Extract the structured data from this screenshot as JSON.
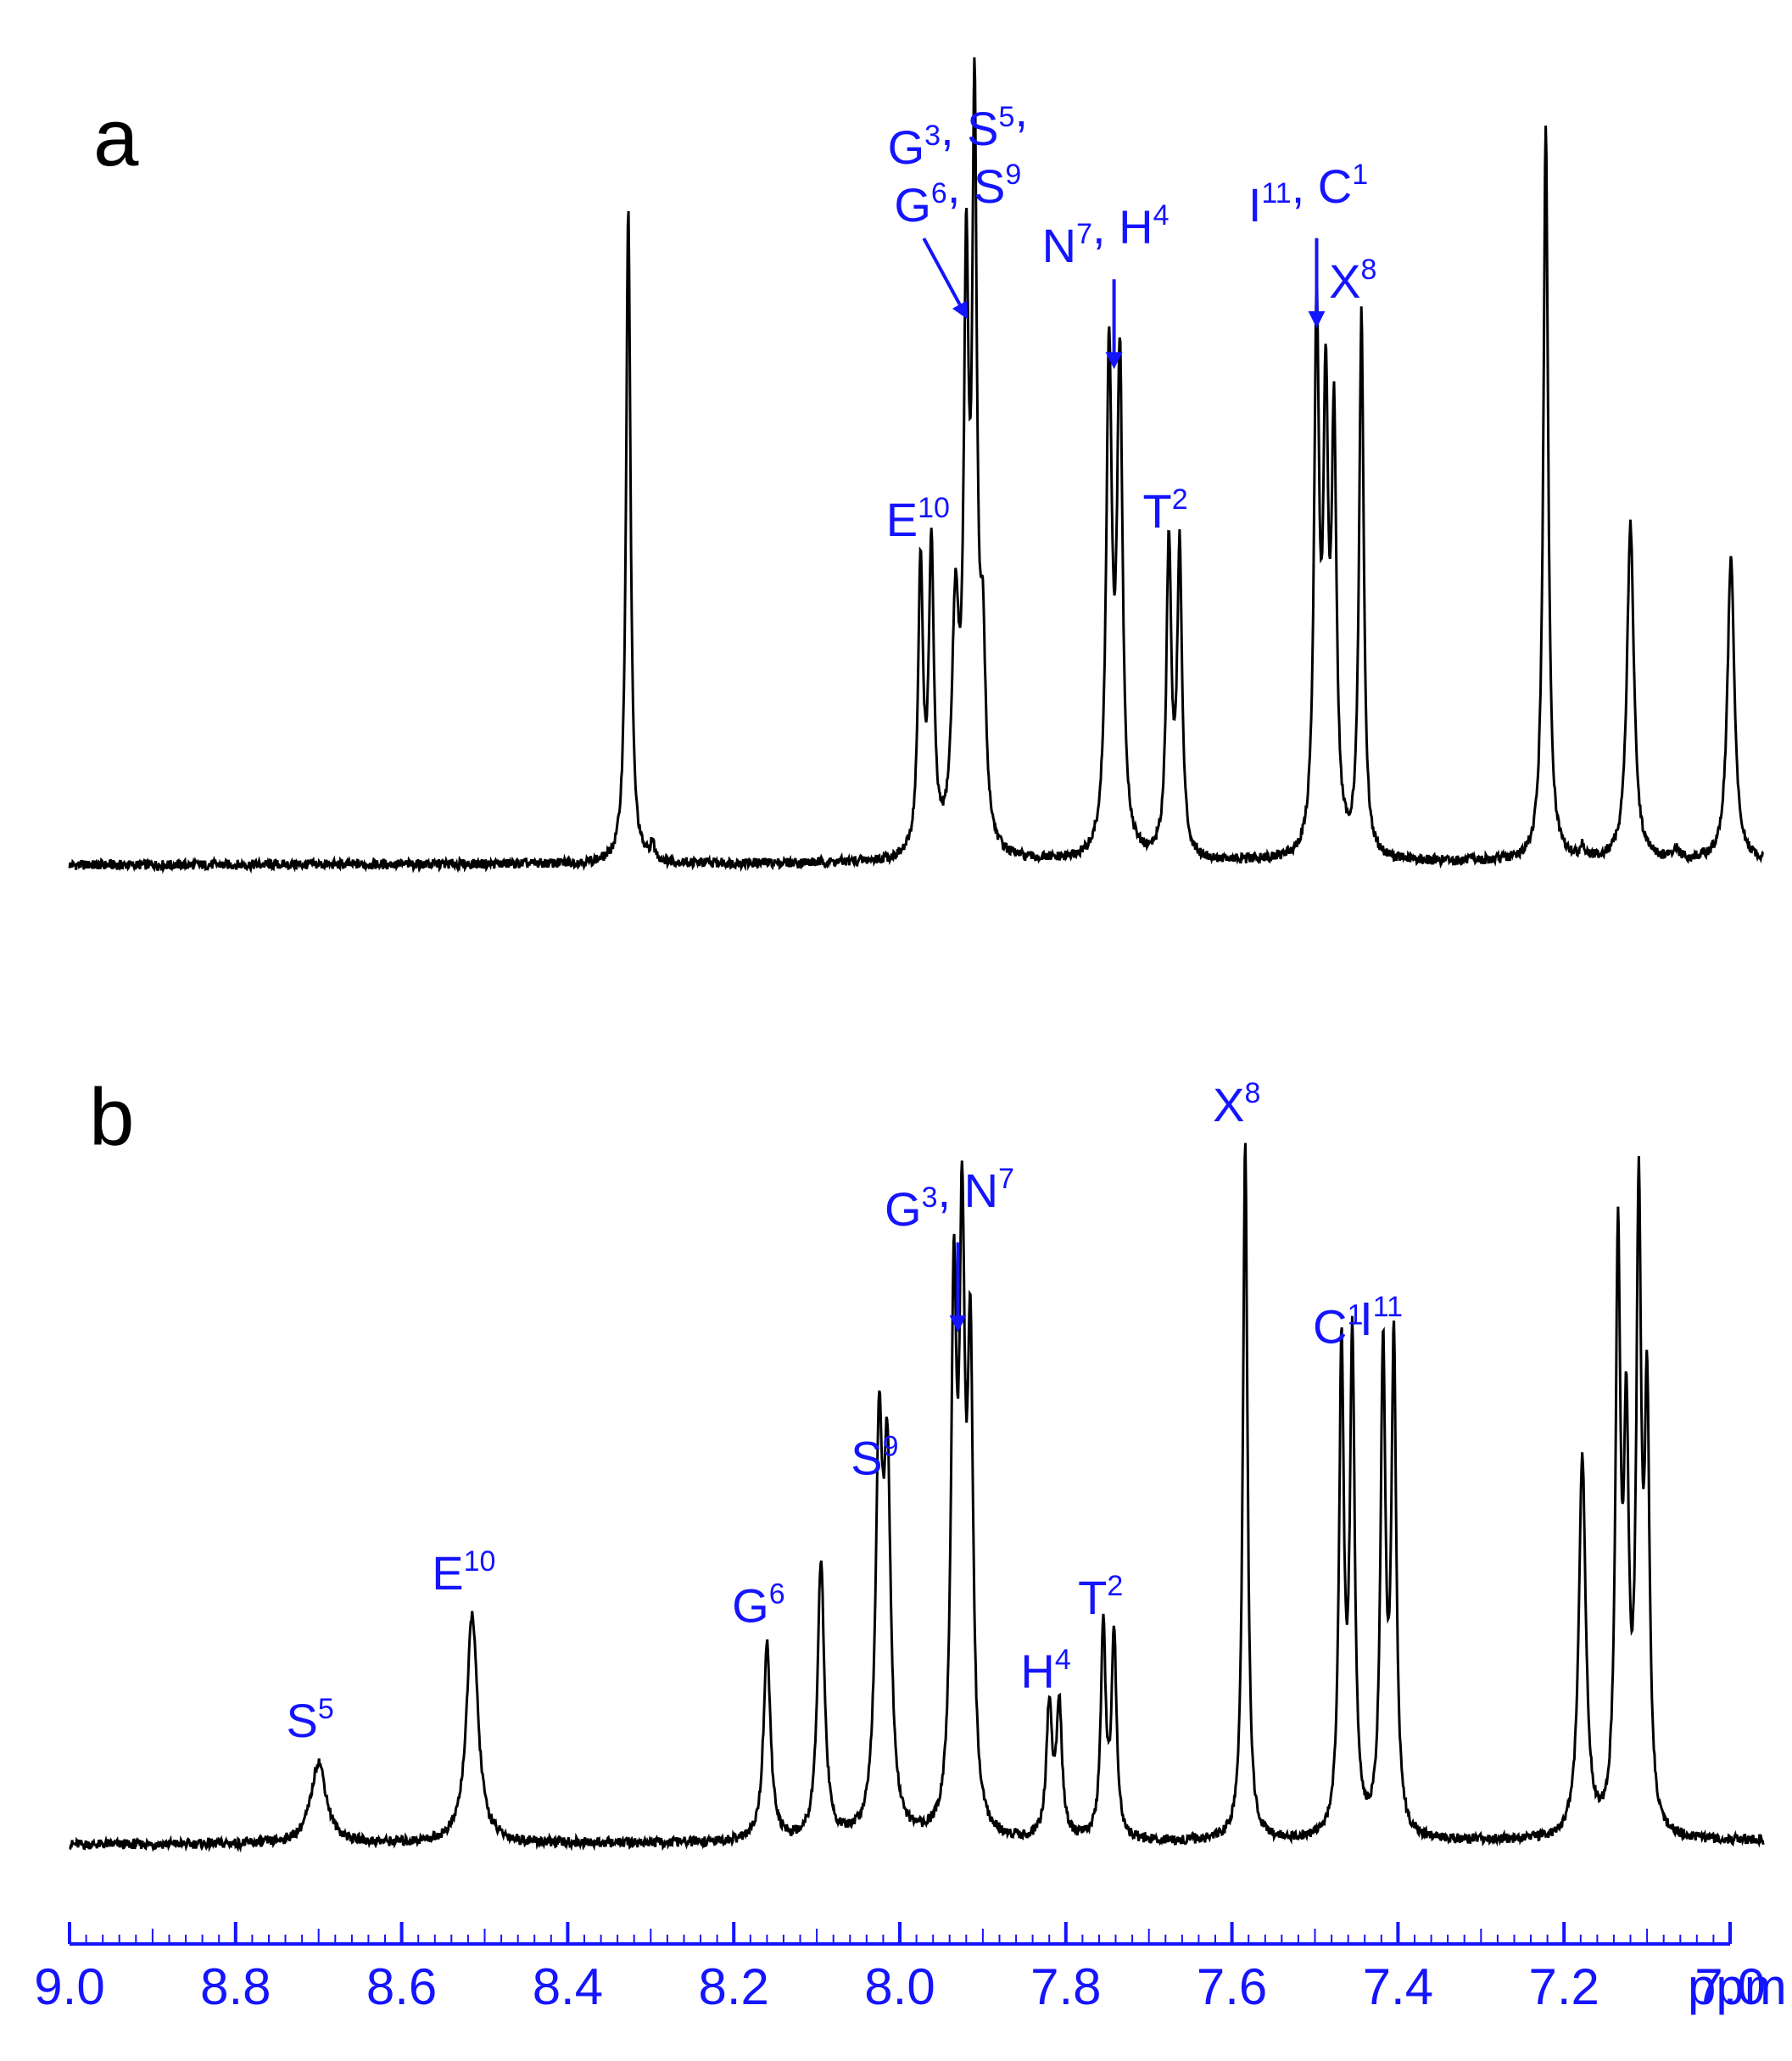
{
  "chart_data": {
    "type": "line",
    "xaxis": {
      "unit": "ppm",
      "range": [
        9.0,
        6.96
      ],
      "reversed": true,
      "major_ticks": [
        "9.0",
        "8.8",
        "8.6",
        "8.4",
        "8.2",
        "8.0",
        "7.8",
        "7.6",
        "7.4",
        "7.2",
        "7.0"
      ],
      "color": "#1414ff"
    },
    "colors": {
      "spectrum": "#000000",
      "annotation": "#1414ff"
    },
    "panels": [
      {
        "letter": "a",
        "series": {
          "peaks": [
            {
              "ppm": 8.327,
              "height": 0.8,
              "width": 0.0032
            },
            {
              "ppm": 8.298,
              "height": 0.02,
              "width": 0.003
            },
            {
              "ppm": 7.975,
              "height": 0.35,
              "width": 0.0035
            },
            {
              "ppm": 7.962,
              "height": 0.37,
              "width": 0.0035
            },
            {
              "ppm": 7.933,
              "height": 0.28,
              "width": 0.005
            },
            {
              "ppm": 7.92,
              "height": 0.66,
              "width": 0.0035
            },
            {
              "ppm": 7.91,
              "height": 0.86,
              "width": 0.0035
            },
            {
              "ppm": 7.9,
              "height": 0.22,
              "width": 0.004
            },
            {
              "ppm": 7.748,
              "height": 0.6,
              "width": 0.004
            },
            {
              "ppm": 7.735,
              "height": 0.59,
              "width": 0.004
            },
            {
              "ppm": 7.676,
              "height": 0.38,
              "width": 0.0035
            },
            {
              "ppm": 7.663,
              "height": 0.37,
              "width": 0.0035
            },
            {
              "ppm": 7.498,
              "height": 0.65,
              "width": 0.0035
            },
            {
              "ppm": 7.487,
              "height": 0.52,
              "width": 0.0035
            },
            {
              "ppm": 7.477,
              "height": 0.5,
              "width": 0.0035
            },
            {
              "ppm": 7.444,
              "height": 0.66,
              "width": 0.0033
            },
            {
              "ppm": 7.222,
              "height": 0.89,
              "width": 0.0035
            },
            {
              "ppm": 7.178,
              "height": 0.015,
              "width": 0.003
            },
            {
              "ppm": 7.12,
              "height": 0.41,
              "width": 0.005
            },
            {
              "ppm": 7.065,
              "height": 0.012,
              "width": 0.004
            },
            {
              "ppm": 6.999,
              "height": 0.37,
              "width": 0.005
            }
          ]
        },
        "annotations": [
          {
            "lines": [
              [
                [
                  "G",
                  "3"
                ],
                [
                  ", S",
                  "5"
                ],
                [
                  ",",
                  ""
                ]
              ],
              [
                [
                  "G",
                  "6"
                ],
                [
                  ", S",
                  "9"
                ]
              ]
            ],
            "ppm": 7.92,
            "arrow": true
          },
          {
            "lines": [
              [
                [
                  "N",
                  "7"
                ],
                [
                  ", H",
                  "4"
                ]
              ]
            ],
            "ppm": 7.742,
            "arrow": true
          },
          {
            "lines": [
              [
                [
                  "I",
                  "11"
                ],
                [
                  ", C",
                  "1"
                ]
              ]
            ],
            "ppm": 7.498,
            "arrow": true
          },
          {
            "lines": [
              [
                [
                  "X",
                  "8"
                ]
              ]
            ],
            "ppm": 7.444,
            "arrow": false
          },
          {
            "lines": [
              [
                [
                  "E",
                  "10"
                ]
              ]
            ],
            "ppm": 7.968,
            "arrow": false
          },
          {
            "lines": [
              [
                [
                  "T",
                  "2"
                ]
              ]
            ],
            "ppm": 7.67,
            "arrow": false
          }
        ]
      },
      {
        "letter": "b",
        "series": {
          "peaks": [
            {
              "ppm": 8.7,
              "height": 0.1,
              "width": 0.011
            },
            {
              "ppm": 8.515,
              "height": 0.28,
              "width": 0.008
            },
            {
              "ppm": 8.16,
              "height": 0.24,
              "width": 0.005
            },
            {
              "ppm": 8.095,
              "height": 0.34,
              "width": 0.005
            },
            {
              "ppm": 8.025,
              "height": 0.46,
              "width": 0.005
            },
            {
              "ppm": 8.015,
              "height": 0.42,
              "width": 0.005
            },
            {
              "ppm": 7.935,
              "height": 0.62,
              "width": 0.004
            },
            {
              "ppm": 7.925,
              "height": 0.67,
              "width": 0.004
            },
            {
              "ppm": 7.915,
              "height": 0.55,
              "width": 0.004
            },
            {
              "ppm": 7.82,
              "height": 0.16,
              "width": 0.004
            },
            {
              "ppm": 7.808,
              "height": 0.16,
              "width": 0.004
            },
            {
              "ppm": 7.755,
              "height": 0.26,
              "width": 0.0035
            },
            {
              "ppm": 7.742,
              "height": 0.25,
              "width": 0.0035
            },
            {
              "ppm": 7.584,
              "height": 0.85,
              "width": 0.0033
            },
            {
              "ppm": 7.468,
              "height": 0.58,
              "width": 0.0035
            },
            {
              "ppm": 7.455,
              "height": 0.59,
              "width": 0.0035
            },
            {
              "ppm": 7.418,
              "height": 0.58,
              "width": 0.0035
            },
            {
              "ppm": 7.405,
              "height": 0.59,
              "width": 0.0035
            },
            {
              "ppm": 7.178,
              "height": 0.46,
              "width": 0.005
            },
            {
              "ppm": 7.135,
              "height": 0.7,
              "width": 0.0035
            },
            {
              "ppm": 7.125,
              "height": 0.45,
              "width": 0.0035
            },
            {
              "ppm": 7.11,
              "height": 0.74,
              "width": 0.0035
            },
            {
              "ppm": 7.1,
              "height": 0.5,
              "width": 0.0035
            }
          ]
        },
        "annotations": [
          {
            "lines": [
              [
                [
                  "S",
                  "5"
                ]
              ]
            ],
            "ppm": 8.7,
            "arrow": false
          },
          {
            "lines": [
              [
                [
                  "E",
                  "10"
                ]
              ]
            ],
            "ppm": 8.515,
            "arrow": false
          },
          {
            "lines": [
              [
                [
                  "G",
                  "6"
                ]
              ]
            ],
            "ppm": 8.16,
            "arrow": false
          },
          {
            "lines": [
              [
                [
                  "S",
                  "9"
                ]
              ]
            ],
            "ppm": 8.02,
            "arrow": false
          },
          {
            "lines": [
              [
                [
                  "G",
                  "3"
                ],
                [
                  ", N",
                  "7"
                ]
              ]
            ],
            "ppm": 7.93,
            "arrow": true
          },
          {
            "lines": [
              [
                [
                  "H",
                  "4"
                ]
              ]
            ],
            "ppm": 7.814,
            "arrow": false
          },
          {
            "lines": [
              [
                [
                  "T",
                  "2"
                ]
              ]
            ],
            "ppm": 7.748,
            "arrow": false
          },
          {
            "lines": [
              [
                [
                  "X",
                  "8"
                ]
              ]
            ],
            "ppm": 7.584,
            "arrow": false
          },
          {
            "lines": [
              [
                [
                  "C",
                  "1"
                ]
              ]
            ],
            "ppm": 7.462,
            "arrow": false
          },
          {
            "lines": [
              [
                [
                  "I",
                  "11"
                ]
              ]
            ],
            "ppm": 7.41,
            "arrow": false
          }
        ]
      }
    ]
  }
}
